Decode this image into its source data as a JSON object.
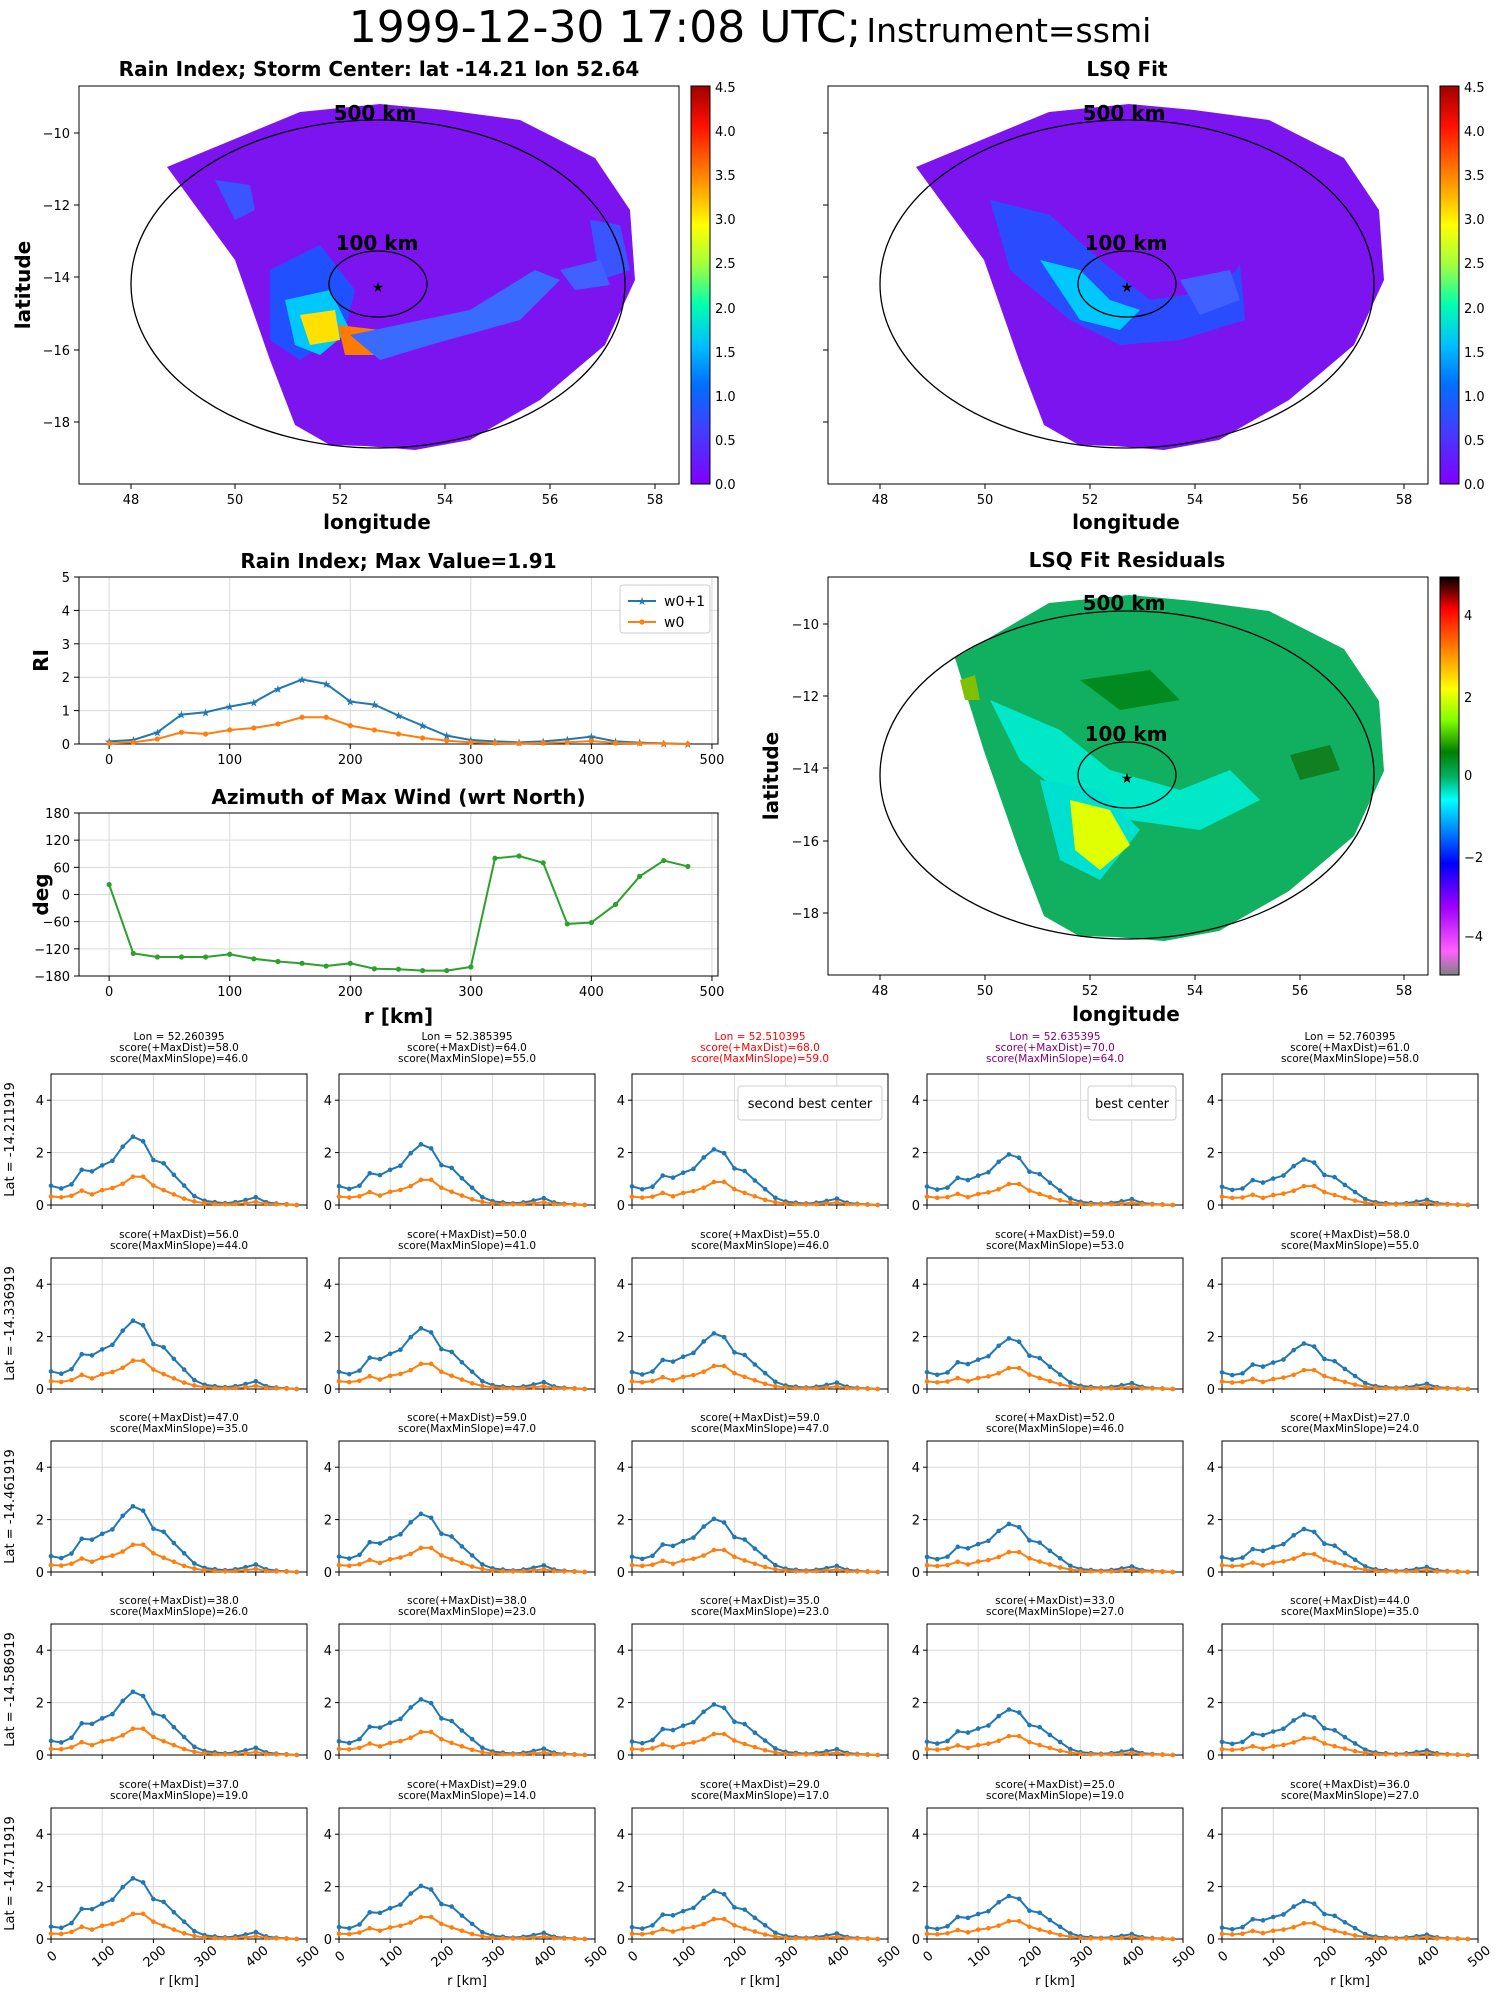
{
  "header": {
    "datetime": "1999-12-30 17:08 UTC;",
    "instrument": "Instrument=ssmi"
  },
  "colors": {
    "w0p1": "#1f77b4",
    "w0": "#ff7f0e",
    "azimuth": "#2ca02c",
    "best": "#800080",
    "second_best": "#ff0000",
    "grid": "#d9d9d9"
  },
  "icons": {
    "storm_center": "star-icon"
  },
  "maps": {
    "rain_index": {
      "title": "Rain Index; Storm Center: lat -14.21 lon 52.64",
      "xlabel": "longitude",
      "ylabel": "latitude",
      "xticks": [
        "48",
        "50",
        "52",
        "54",
        "56",
        "58"
      ],
      "yticks": [
        "−10",
        "−12",
        "−14",
        "−16",
        "−18"
      ],
      "colorbar": [
        "0.0",
        "0.5",
        "1.0",
        "1.5",
        "2.0",
        "2.5",
        "3.0",
        "3.5",
        "4.0",
        "4.5"
      ],
      "ring_500": "500 km",
      "ring_100": "100 km"
    },
    "lsq_fit": {
      "title": "LSQ Fit",
      "xlabel": "longitude",
      "ylabel": "",
      "xticks": [
        "48",
        "50",
        "52",
        "54",
        "56",
        "58"
      ],
      "yticks": [
        "",
        "",
        "",
        "",
        ""
      ],
      "colorbar": [
        "0.0",
        "0.5",
        "1.0",
        "1.5",
        "2.0",
        "2.5",
        "3.0",
        "3.5",
        "4.0",
        "4.5"
      ],
      "ring_500": "500 km",
      "ring_100": "100 km"
    },
    "residuals": {
      "title": "LSQ Fit Residuals",
      "xlabel": "longitude",
      "ylabel": "latitude",
      "xticks": [
        "48",
        "50",
        "52",
        "54",
        "56",
        "58"
      ],
      "yticks": [
        "−10",
        "−12",
        "−14",
        "−16",
        "−18"
      ],
      "colorbar": [
        "4",
        "2",
        "0",
        "−2",
        "−4"
      ],
      "ring_500": "500 km",
      "ring_100": "100 km"
    }
  },
  "chart_data": [
    {
      "type": "line",
      "title": "Rain Index; Max Value=1.91",
      "xlabel": "",
      "ylabel": "RI",
      "xlim": [
        -25,
        505
      ],
      "ylim": [
        0,
        5
      ],
      "xticks": [
        "0",
        "100",
        "200",
        "300",
        "400",
        "500"
      ],
      "yticks": [
        "0",
        "1",
        "2",
        "3",
        "4",
        "5"
      ],
      "x": [
        0,
        20,
        40,
        60,
        80,
        100,
        120,
        140,
        160,
        180,
        200,
        220,
        240,
        260,
        280,
        300,
        320,
        340,
        360,
        380,
        400,
        420,
        440,
        460,
        480
      ],
      "series": [
        {
          "name": "w0+1",
          "values": [
            0.08,
            0.12,
            0.35,
            0.88,
            0.95,
            1.12,
            1.25,
            1.65,
            1.93,
            1.8,
            1.27,
            1.18,
            0.85,
            0.55,
            0.25,
            0.12,
            0.08,
            0.05,
            0.08,
            0.14,
            0.22,
            0.08,
            0.04,
            0.02,
            0.0
          ]
        },
        {
          "name": "w0",
          "values": [
            0.02,
            0.05,
            0.15,
            0.35,
            0.3,
            0.42,
            0.48,
            0.6,
            0.8,
            0.8,
            0.55,
            0.42,
            0.3,
            0.18,
            0.1,
            0.05,
            0.03,
            0.02,
            0.03,
            0.05,
            0.09,
            0.03,
            0.02,
            0.01,
            0.0
          ]
        }
      ],
      "legend": "top-right"
    },
    {
      "type": "line",
      "title": "Azimuth of Max Wind (wrt North)",
      "xlabel": "r [km]",
      "ylabel": "deg",
      "xlim": [
        -25,
        505
      ],
      "ylim": [
        -180,
        180
      ],
      "xticks": [
        "0",
        "100",
        "200",
        "300",
        "400",
        "500"
      ],
      "yticks": [
        "180",
        "120",
        "60",
        "0",
        "−60",
        "−120",
        "−180"
      ],
      "x": [
        0,
        20,
        40,
        60,
        80,
        100,
        120,
        140,
        160,
        180,
        200,
        220,
        240,
        260,
        280,
        300,
        320,
        340,
        360,
        380,
        400,
        420,
        440,
        460,
        480
      ],
      "series": [
        {
          "values": [
            22,
            -130,
            -138,
            -138,
            -138,
            -132,
            -142,
            -148,
            -152,
            -158,
            -152,
            -164,
            -165,
            -168,
            -168,
            -160,
            80,
            85,
            70,
            -65,
            -62,
            -22,
            40,
            75,
            62
          ]
        }
      ]
    }
  ],
  "grid": {
    "column_headers": [
      {
        "col": 0,
        "lines": [
          "Lon = 52.260395",
          "score(+MaxDist)=58.0",
          "score(MaxMinSlope)=46.0"
        ],
        "color": "#000000"
      },
      {
        "col": 1,
        "lines": [
          "Lon = 52.385395",
          "score(+MaxDist)=64.0",
          "score(MaxMinSlope)=55.0"
        ],
        "color": "#000000"
      },
      {
        "col": 2,
        "lines": [
          "Lon = 52.510395",
          "score(+MaxDist)=68.0",
          "score(MaxMinSlope)=59.0"
        ],
        "color": "#ff0000"
      },
      {
        "col": 3,
        "lines": [
          "Lon = 52.635395",
          "score(+MaxDist)=70.0",
          "score(MaxMinSlope)=64.0"
        ],
        "color": "#800080"
      },
      {
        "col": 4,
        "lines": [
          "Lon = 52.760395",
          "score(+MaxDist)=61.0",
          "score(MaxMinSlope)=58.0"
        ],
        "color": "#000000"
      }
    ],
    "row_labels": [
      "Lat = -14.211919",
      "Lat = -14.336919",
      "Lat = -14.461919",
      "Lat = -14.586919",
      "Lat = -14.711919"
    ],
    "scores": [
      null,
      [
        [
          "score(+MaxDist)=56.0",
          "score(MaxMinSlope)=44.0"
        ],
        [
          "score(+MaxDist)=50.0",
          "score(MaxMinSlope)=41.0"
        ],
        [
          "score(+MaxDist)=55.0",
          "score(MaxMinSlope)=46.0"
        ],
        [
          "score(+MaxDist)=59.0",
          "score(MaxMinSlope)=53.0"
        ],
        [
          "score(+MaxDist)=58.0",
          "score(MaxMinSlope)=55.0"
        ]
      ],
      [
        [
          "score(+MaxDist)=47.0",
          "score(MaxMinSlope)=35.0"
        ],
        [
          "score(+MaxDist)=59.0",
          "score(MaxMinSlope)=47.0"
        ],
        [
          "score(+MaxDist)=59.0",
          "score(MaxMinSlope)=47.0"
        ],
        [
          "score(+MaxDist)=52.0",
          "score(MaxMinSlope)=46.0"
        ],
        [
          "score(+MaxDist)=27.0",
          "score(MaxMinSlope)=24.0"
        ]
      ],
      [
        [
          "score(+MaxDist)=38.0",
          "score(MaxMinSlope)=26.0"
        ],
        [
          "score(+MaxDist)=38.0",
          "score(MaxMinSlope)=23.0"
        ],
        [
          "score(+MaxDist)=35.0",
          "score(MaxMinSlope)=23.0"
        ],
        [
          "score(+MaxDist)=33.0",
          "score(MaxMinSlope)=27.0"
        ],
        [
          "score(+MaxDist)=44.0",
          "score(MaxMinSlope)=35.0"
        ]
      ],
      [
        [
          "score(+MaxDist)=37.0",
          "score(MaxMinSlope)=19.0"
        ],
        [
          "score(+MaxDist)=29.0",
          "score(MaxMinSlope)=14.0"
        ],
        [
          "score(+MaxDist)=29.0",
          "score(MaxMinSlope)=17.0"
        ],
        [
          "score(+MaxDist)=25.0",
          "score(MaxMinSlope)=19.0"
        ],
        [
          "score(+MaxDist)=36.0",
          "score(MaxMinSlope)=27.0"
        ]
      ]
    ],
    "annotations": {
      "second_best": "second best center",
      "best": "best center"
    },
    "xticks": [
      "0",
      "100",
      "200",
      "300",
      "400",
      "500"
    ],
    "yticks": [
      "0",
      "2",
      "4"
    ],
    "xlabel": "r [km]",
    "xlim": [
      0,
      500
    ],
    "ylim": [
      0,
      5
    ]
  }
}
